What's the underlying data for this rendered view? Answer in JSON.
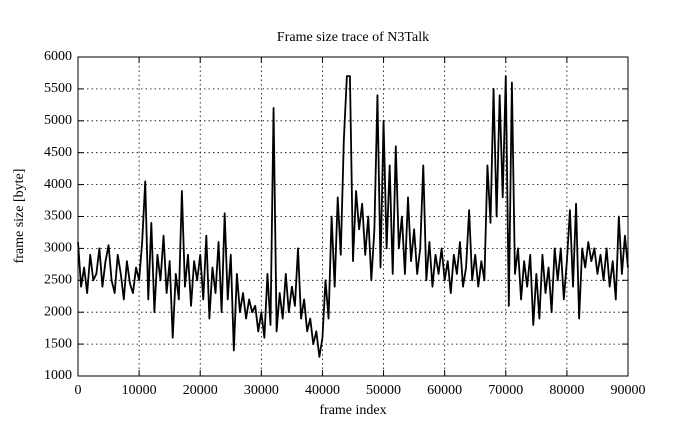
{
  "chart_data": {
    "type": "line",
    "title": "Frame size trace of N3Talk",
    "xlabel": "frame index",
    "ylabel": "frame size [byte]",
    "color": "#000000",
    "grid": true,
    "xlim": [
      0,
      90000
    ],
    "xticks": [
      0,
      10000,
      20000,
      30000,
      40000,
      50000,
      60000,
      70000,
      80000,
      90000
    ],
    "ylim": [
      1000,
      6000
    ],
    "yticks": [
      1000,
      1500,
      2000,
      2500,
      3000,
      3500,
      4000,
      4500,
      5000,
      5500,
      6000
    ],
    "x": [
      0,
      500,
      1000,
      1500,
      2000,
      2500,
      3000,
      3500,
      4000,
      4500,
      5000,
      5500,
      6000,
      6500,
      7000,
      7500,
      8000,
      8500,
      9000,
      9500,
      10000,
      10500,
      11000,
      11500,
      12000,
      12500,
      13000,
      13500,
      14000,
      14500,
      15000,
      15500,
      16000,
      16500,
      17000,
      17500,
      18000,
      18500,
      19000,
      19500,
      20000,
      20500,
      21000,
      21500,
      22000,
      22500,
      23000,
      23500,
      24000,
      24500,
      25000,
      25500,
      26000,
      26500,
      27000,
      27500,
      28000,
      28500,
      29000,
      29500,
      30000,
      30500,
      31000,
      31500,
      32000,
      32500,
      33000,
      33500,
      34000,
      34500,
      35000,
      35500,
      36000,
      36500,
      37000,
      37500,
      38000,
      38500,
      39000,
      39500,
      40000,
      40500,
      41000,
      41500,
      42000,
      42500,
      43000,
      43500,
      44000,
      44500,
      45000,
      45500,
      46000,
      46500,
      47000,
      47500,
      48000,
      48500,
      49000,
      49500,
      50000,
      50500,
      51000,
      51500,
      52000,
      52500,
      53000,
      53500,
      54000,
      54500,
      55000,
      55500,
      56000,
      56500,
      57000,
      57500,
      58000,
      58500,
      59000,
      59500,
      60000,
      60500,
      61000,
      61500,
      62000,
      62500,
      63000,
      63500,
      64000,
      64500,
      65000,
      65500,
      66000,
      66500,
      67000,
      67500,
      68000,
      68500,
      69000,
      69500,
      70000,
      70500,
      71000,
      71500,
      72000,
      72500,
      73000,
      73500,
      74000,
      74500,
      75000,
      75500,
      76000,
      76500,
      77000,
      77500,
      78000,
      78500,
      79000,
      79500,
      80000,
      80500,
      81000,
      81500,
      82000,
      82500,
      83000,
      83500,
      84000,
      84500,
      85000,
      85500,
      86000,
      86500,
      87000,
      87500,
      88000,
      88500,
      89000,
      89500,
      90000
    ],
    "values": [
      3100,
      2400,
      2700,
      2300,
      2900,
      2500,
      2600,
      3000,
      2400,
      2800,
      3050,
      2500,
      2300,
      2900,
      2600,
      2200,
      2800,
      2450,
      2300,
      2700,
      2500,
      3100,
      4050,
      2200,
      3400,
      2000,
      2900,
      2500,
      3200,
      2300,
      2800,
      1600,
      2600,
      2200,
      3900,
      2400,
      2900,
      2100,
      2800,
      2500,
      2900,
      2200,
      3200,
      1900,
      2700,
      2300,
      3100,
      2000,
      3550,
      2200,
      2900,
      1400,
      2600,
      2000,
      2300,
      1900,
      2200,
      2000,
      2100,
      1700,
      2000,
      1600,
      2600,
      1800,
      5200,
      1700,
      2300,
      1900,
      2600,
      2000,
      2400,
      2100,
      3000,
      1900,
      2200,
      1700,
      1900,
      1500,
      1700,
      1300,
      1600,
      2500,
      1900,
      3500,
      2400,
      3800,
      2900,
      4700,
      5700,
      5700,
      2800,
      3900,
      3300,
      3700,
      2900,
      3500,
      2500,
      3300,
      5400,
      2700,
      5000,
      3000,
      4300,
      2600,
      4600,
      3000,
      3500,
      2600,
      3800,
      2800,
      3300,
      2600,
      3000,
      4300,
      2500,
      3100,
      2400,
      2900,
      2600,
      3000,
      2500,
      2800,
      2300,
      2900,
      2600,
      3100,
      2400,
      2700,
      3600,
      2500,
      2900,
      2400,
      2800,
      2500,
      4300,
      3400,
      5500,
      3500,
      5400,
      3800,
      5700,
      2100,
      5600,
      2600,
      3000,
      2200,
      2800,
      2400,
      2900,
      1800,
      2600,
      1900,
      2900,
      2300,
      2700,
      2000,
      3000,
      2500,
      3000,
      2200,
      2800,
      3600,
      2400,
      3700,
      1900,
      3000,
      2700,
      3100,
      2800,
      3000,
      2600,
      2900,
      2500,
      3000,
      2400,
      2800,
      2200,
      3500,
      2600,
      3200,
      2700
    ]
  }
}
